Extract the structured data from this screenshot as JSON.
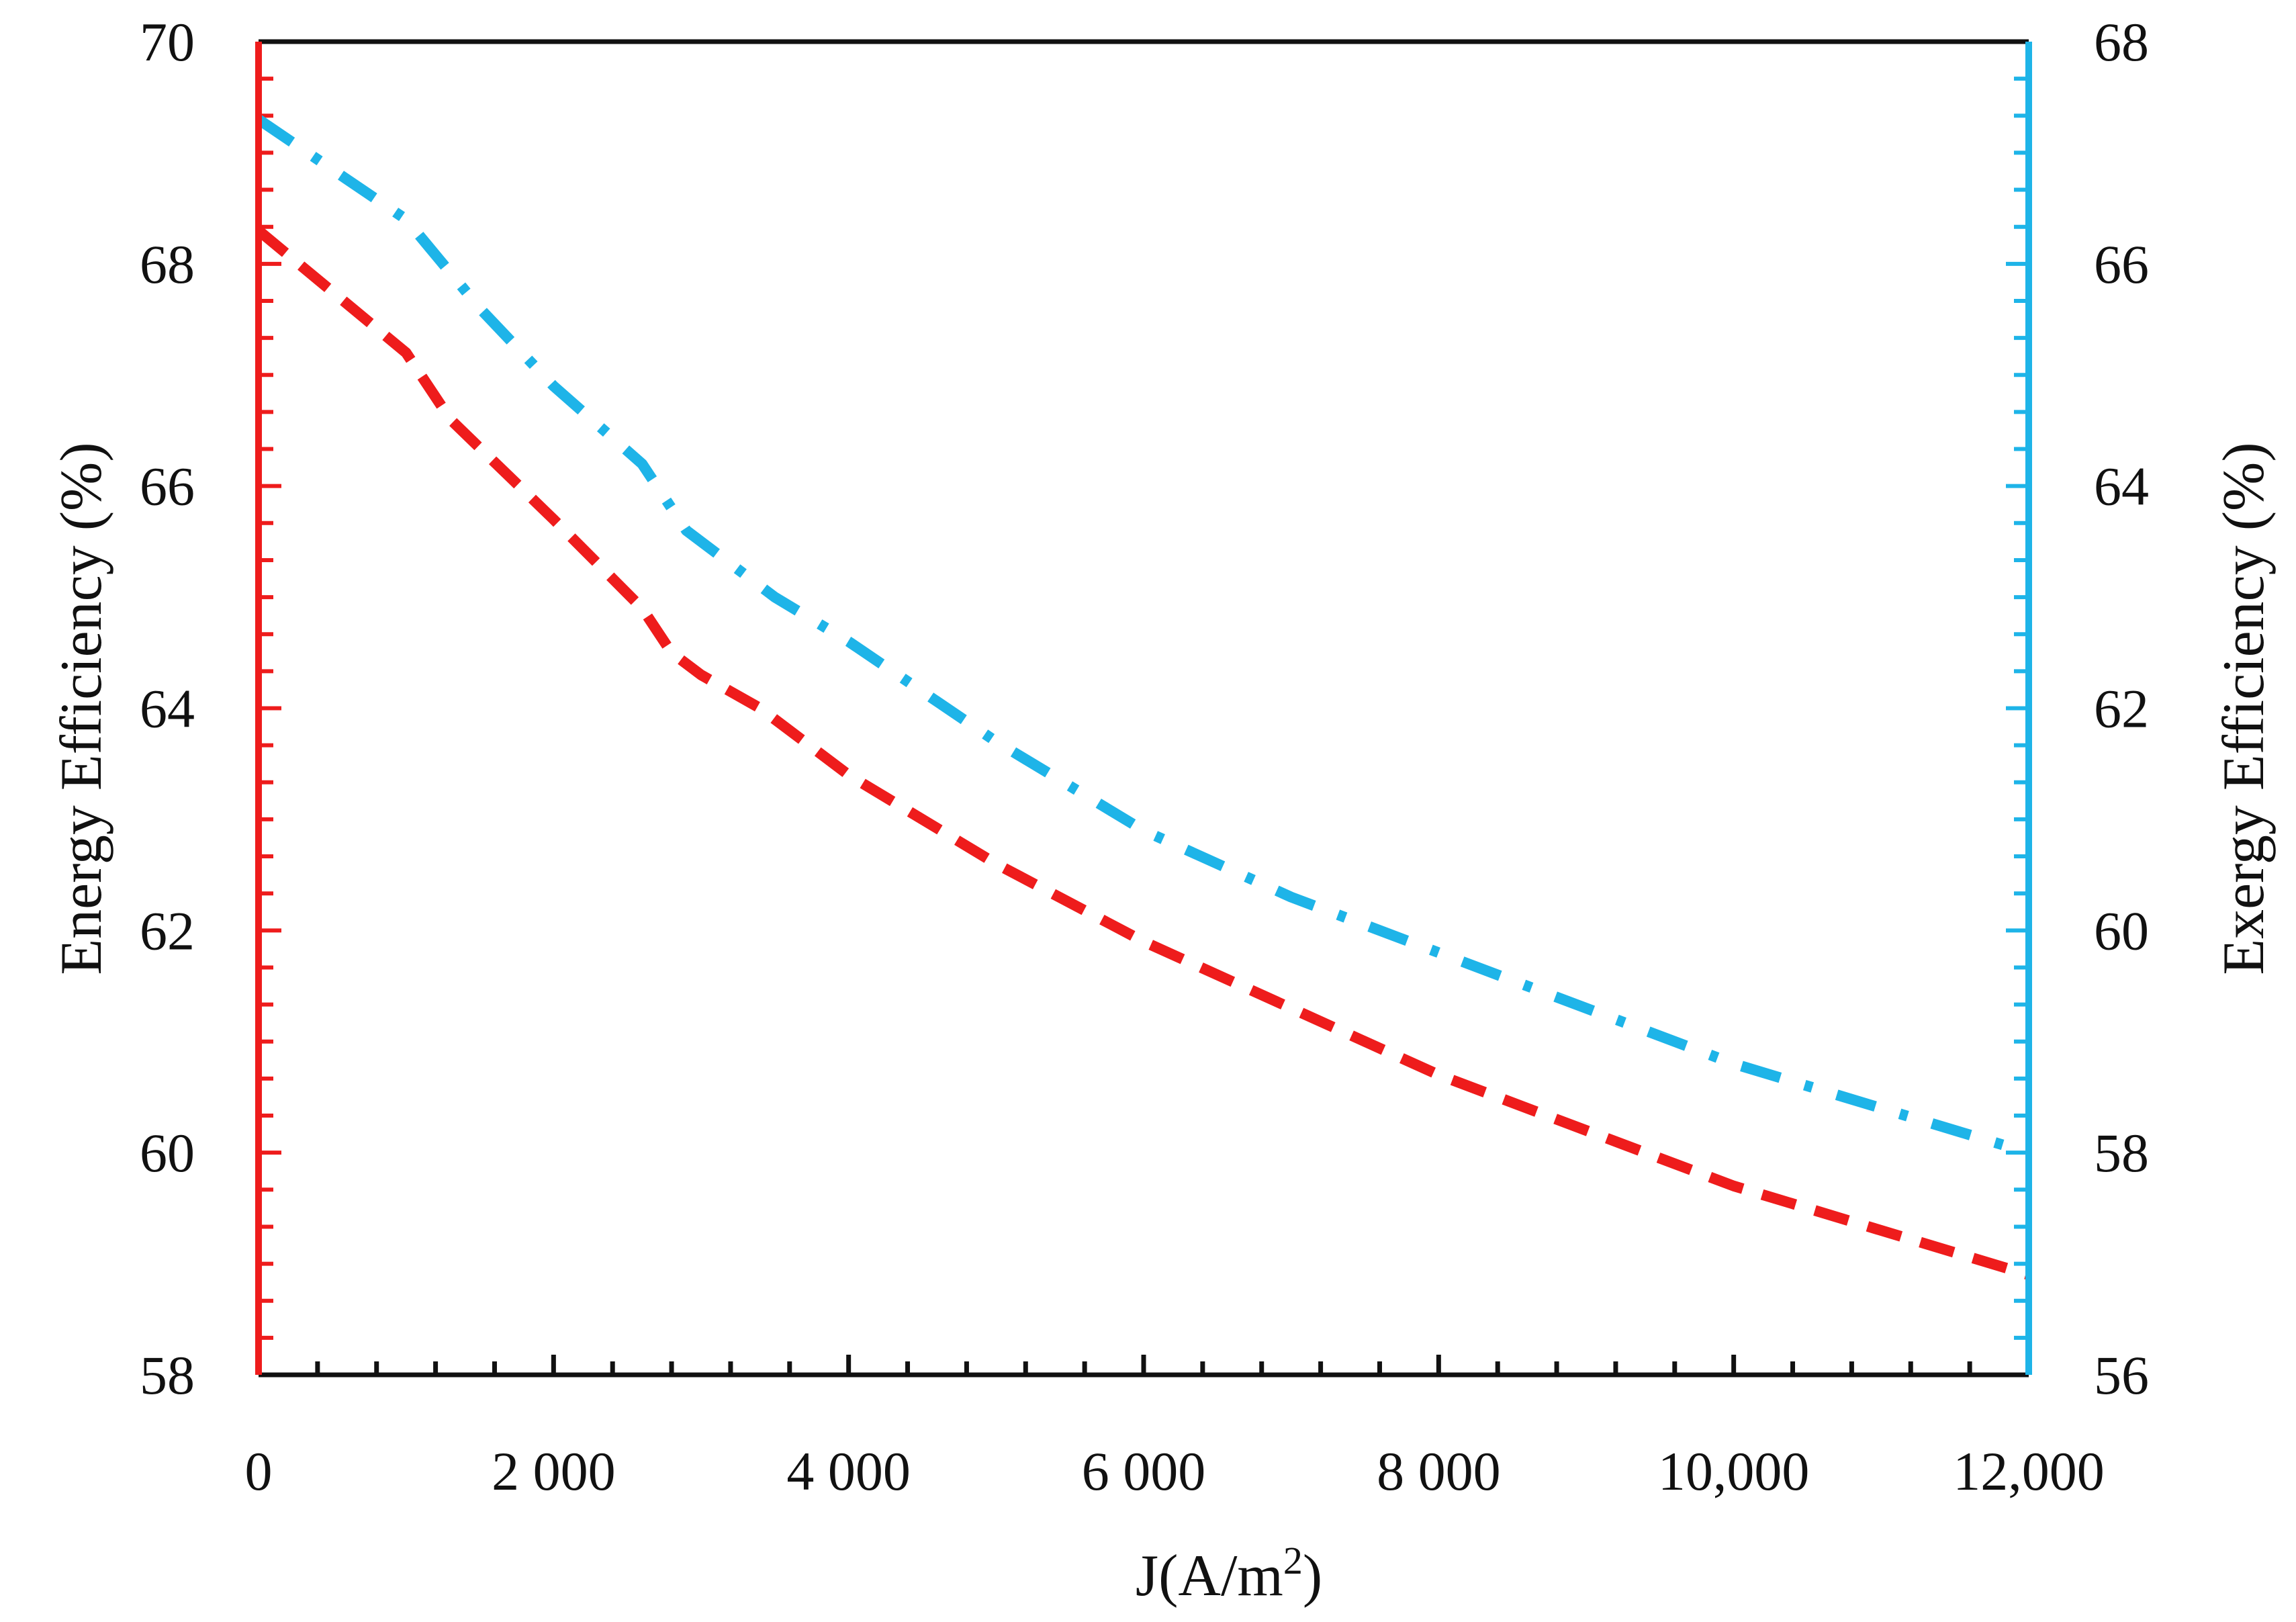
{
  "chart_data": {
    "type": "line",
    "title": "",
    "xlabel": "J(A/m",
    "xlabel_superscript": "2",
    "xlabel_suffix": ")",
    "ylabel_left": "Energy Efficiency (%)",
    "ylabel_right": "Exergy Efficiency (%)",
    "xlim": [
      0,
      12000
    ],
    "ylim_left": [
      58,
      70
    ],
    "ylim_right": [
      56,
      68
    ],
    "grid": false,
    "x_ticks": [
      {
        "value": 0,
        "label": "0"
      },
      {
        "value": 2000,
        "label": "2 000"
      },
      {
        "value": 4000,
        "label": "4 000"
      },
      {
        "value": 6000,
        "label": "6 000"
      },
      {
        "value": 8000,
        "label": "8 000"
      },
      {
        "value": 10000,
        "label": "10,000"
      },
      {
        "value": 12000,
        "label": "12,000"
      }
    ],
    "y_ticks_left": [
      {
        "value": 58,
        "label": "58"
      },
      {
        "value": 60,
        "label": "60"
      },
      {
        "value": 62,
        "label": "62"
      },
      {
        "value": 64,
        "label": "64"
      },
      {
        "value": 66,
        "label": "66"
      },
      {
        "value": 68,
        "label": "68"
      },
      {
        "value": 70,
        "label": "70"
      }
    ],
    "y_ticks_right": [
      {
        "value": 56,
        "label": "56"
      },
      {
        "value": 58,
        "label": "58"
      },
      {
        "value": 60,
        "label": "60"
      },
      {
        "value": 62,
        "label": "62"
      },
      {
        "value": 64,
        "label": "64"
      },
      {
        "value": 66,
        "label": "66"
      },
      {
        "value": 68,
        "label": "68"
      }
    ],
    "series": [
      {
        "name": "Energy Efficiency",
        "axis": "left",
        "color": "#ee1c1c",
        "style": "dashed",
        "x": [
          0,
          1000,
          1300,
          2000,
          2600,
          2800,
          3000,
          3400,
          4000,
          5000,
          6000,
          7000,
          8000,
          9000,
          10000,
          11000,
          12000
        ],
        "y": [
          68.3,
          67.2,
          66.6,
          65.7,
          64.9,
          64.5,
          64.3,
          64.0,
          63.4,
          62.6,
          61.9,
          61.3,
          60.7,
          60.2,
          59.7,
          59.3,
          58.9
        ]
      },
      {
        "name": "Exergy Efficiency",
        "axis": "right",
        "color": "#1eb4e8",
        "style": "dashdot",
        "x": [
          0,
          1000,
          1500,
          2000,
          2600,
          2900,
          3500,
          4000,
          5000,
          6000,
          7000,
          8000,
          9000,
          10000,
          11000,
          12000
        ],
        "y": [
          67.3,
          66.4,
          65.6,
          64.9,
          64.2,
          63.6,
          63.0,
          62.6,
          61.7,
          60.9,
          60.3,
          59.8,
          59.3,
          58.8,
          58.4,
          58.0
        ]
      }
    ]
  }
}
